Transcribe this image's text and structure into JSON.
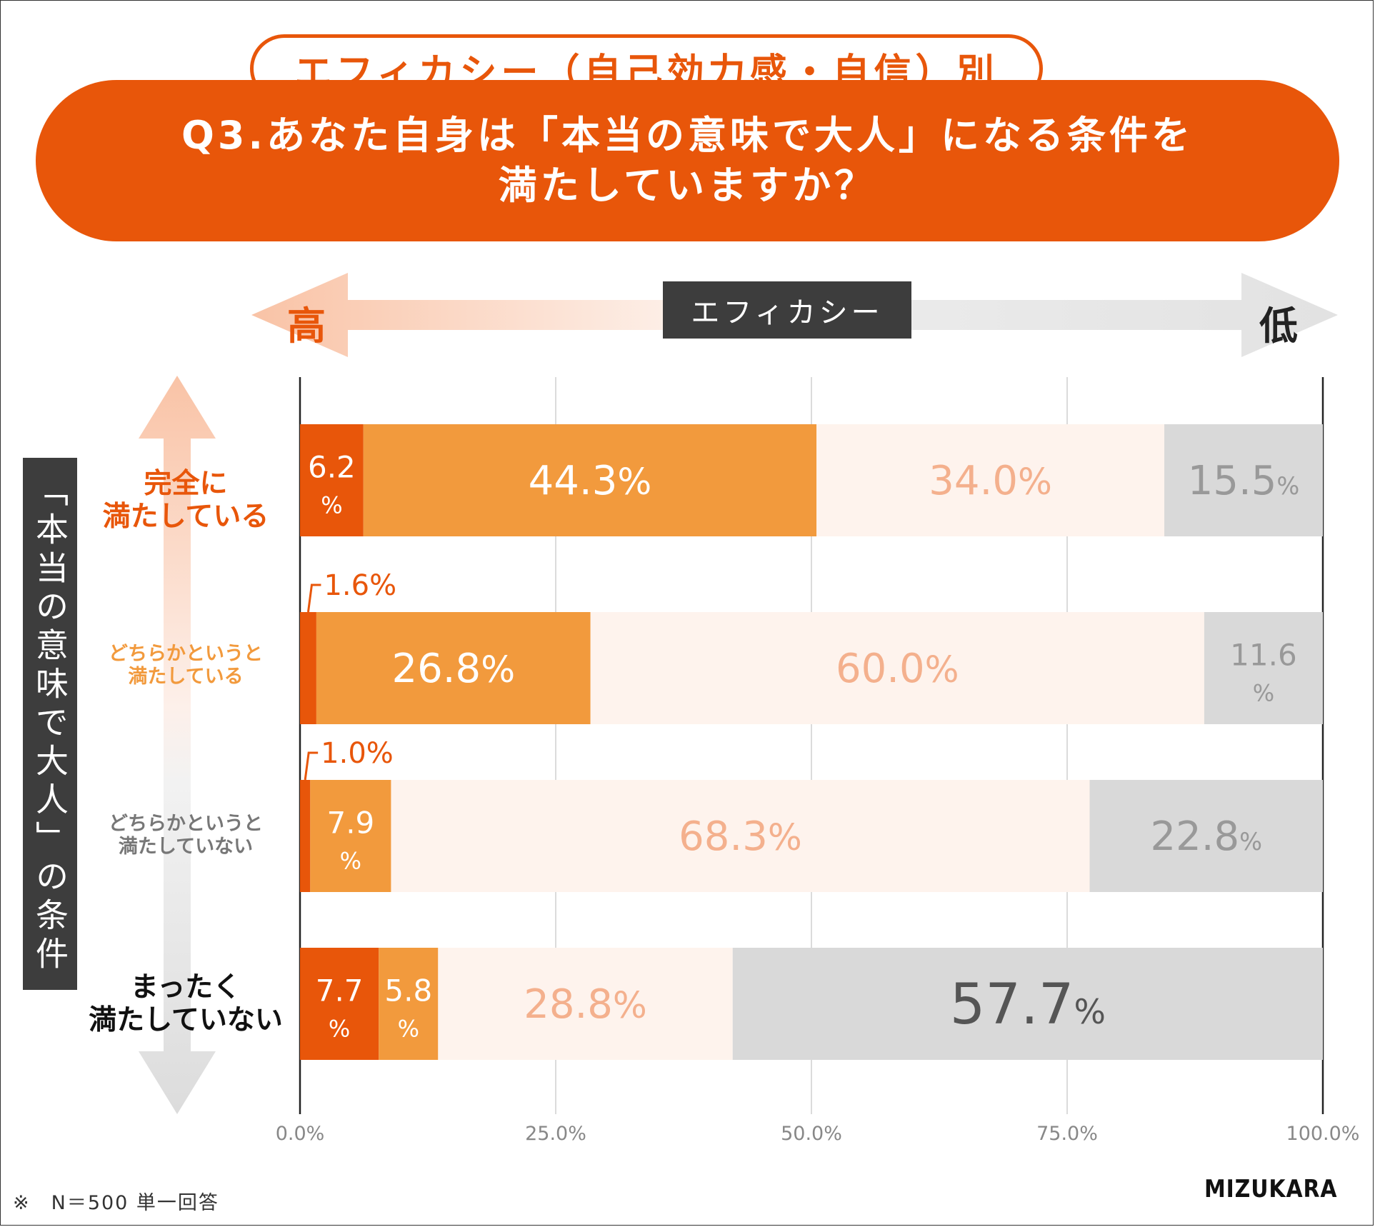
{
  "header": {
    "subtitle": "エフィカシー（自己効力感・自信）別",
    "question_line1": "Q3.あなた自身は「本当の意味で大人」になる条件を",
    "question_line2": "満たしていますか？"
  },
  "efficacy_axis": {
    "label": "エフィカシー",
    "high": "高",
    "low": "低"
  },
  "vertical_label": "「本当の意味で大人」の条件",
  "footnote": "※　N＝500 単一回答",
  "brand": "MIZUKARA",
  "colors": {
    "accent": "#e8560a",
    "orange": "#f29a3d",
    "peach": "#fef3ed",
    "gray": "#d9d9d9",
    "dark": "#3d3d3d"
  },
  "chart_data": {
    "type": "bar",
    "orientation": "horizontal",
    "stacked": true,
    "xlim": [
      0,
      100
    ],
    "xticks": [
      "0.0%",
      "25.0%",
      "50.0%",
      "75.0%",
      "100.0%"
    ],
    "categories": [
      "完全に満たしている",
      "どちらかというと満たしている",
      "どちらかというと満たしていない",
      "まったく満たしていない"
    ],
    "category_lines": [
      [
        "完全に",
        "満たしている"
      ],
      [
        "どちらかというと",
        "満たしている"
      ],
      [
        "どちらかというと",
        "満たしていない"
      ],
      [
        "まったく",
        "満たしていない"
      ]
    ],
    "series": [
      {
        "values": [
          6.2,
          1.6,
          1.0,
          7.7
        ],
        "color": "#e8560a"
      },
      {
        "values": [
          44.3,
          26.8,
          7.9,
          5.8
        ],
        "color": "#f29a3d"
      },
      {
        "values": [
          34.0,
          60.0,
          68.3,
          28.8
        ],
        "color": "#fef3ed"
      },
      {
        "values": [
          15.5,
          11.6,
          22.8,
          57.7
        ],
        "color": "#d9d9d9"
      }
    ],
    "grid": true
  }
}
